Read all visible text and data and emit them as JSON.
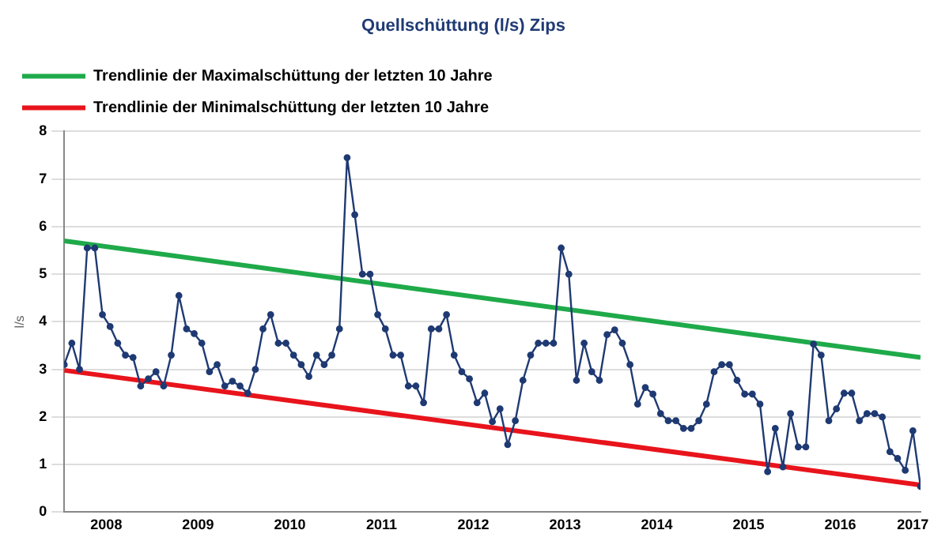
{
  "chart_data": {
    "type": "line",
    "title": "Quellschüttung (l/s) Zips",
    "ylabel": "l/s",
    "xlim": [
      "2008-01",
      "2017-05"
    ],
    "xticks": [
      {
        "value": "2008-06-16",
        "label": "2008"
      },
      {
        "value": "2009-06-16",
        "label": "2009"
      },
      {
        "value": "2010-06-16",
        "label": "2010"
      },
      {
        "value": "2011-06-16",
        "label": "2011"
      },
      {
        "value": "2012-06-16",
        "label": "2012"
      },
      {
        "value": "2013-06-16",
        "label": "2013"
      },
      {
        "value": "2014-06-16",
        "label": "2014"
      },
      {
        "value": "2015-06-16",
        "label": "2015"
      },
      {
        "value": "2016-06-16",
        "label": "2016"
      },
      {
        "value": "2017-04",
        "label": "2017"
      }
    ],
    "ylim": [
      0,
      8
    ],
    "yticks": [
      0,
      1,
      2,
      3,
      4,
      5,
      6,
      7,
      8
    ],
    "grid": "y",
    "legend": "top left",
    "series": [
      {
        "color": "#1f3a73",
        "marker": "circle",
        "x": [
          "2008-01",
          "2008-02",
          "2008-03",
          "2008-04",
          "2008-05",
          "2008-06",
          "2008-07",
          "2008-08",
          "2008-09",
          "2008-10",
          "2008-11",
          "2008-12",
          "2009-01",
          "2009-02",
          "2009-03",
          "2009-04",
          "2009-05",
          "2009-06",
          "2009-07",
          "2009-08",
          "2009-09",
          "2009-10",
          "2009-11",
          "2009-12",
          "2010-01",
          "2010-02",
          "2010-03",
          "2010-04",
          "2010-05",
          "2010-06",
          "2010-07",
          "2010-08",
          "2010-09",
          "2010-10",
          "2010-11",
          "2010-12",
          "2011-01",
          "2011-02",
          "2011-03",
          "2011-04",
          "2011-05",
          "2011-06",
          "2011-07",
          "2011-08",
          "2011-09",
          "2011-10",
          "2011-11",
          "2011-12",
          "2012-01",
          "2012-02",
          "2012-03",
          "2012-04",
          "2012-05",
          "2012-06",
          "2012-07",
          "2012-08",
          "2012-09",
          "2012-10",
          "2012-11",
          "2012-12",
          "2013-01",
          "2013-02",
          "2013-03",
          "2013-04",
          "2013-05",
          "2013-06",
          "2013-07",
          "2013-08",
          "2013-09",
          "2013-10",
          "2013-11",
          "2013-12",
          "2014-01",
          "2014-02",
          "2014-03",
          "2014-04",
          "2014-05",
          "2014-06",
          "2014-07",
          "2014-08",
          "2014-09",
          "2014-10",
          "2014-11",
          "2014-12",
          "2015-01",
          "2015-02",
          "2015-03",
          "2015-04",
          "2015-05",
          "2015-06",
          "2015-07",
          "2015-08",
          "2015-09",
          "2015-10",
          "2015-11",
          "2015-12",
          "2016-01",
          "2016-02",
          "2016-03",
          "2016-04",
          "2016-05",
          "2016-06",
          "2016-07",
          "2016-08",
          "2016-09",
          "2016-10",
          "2016-11",
          "2016-12",
          "2017-01",
          "2017-02",
          "2017-03",
          "2017-04",
          "2017-05"
        ],
        "values": [
          3.1,
          3.55,
          3.0,
          5.55,
          5.55,
          4.15,
          3.9,
          3.55,
          3.3,
          3.25,
          2.65,
          2.8,
          2.95,
          2.65,
          3.3,
          4.55,
          3.85,
          3.75,
          3.55,
          2.95,
          3.1,
          2.65,
          2.75,
          2.65,
          2.5,
          3.0,
          3.85,
          4.15,
          3.55,
          3.55,
          3.3,
          3.1,
          2.85,
          3.3,
          3.1,
          3.3,
          3.85,
          7.45,
          6.25,
          5.0,
          5.0,
          4.15,
          3.85,
          3.3,
          3.3,
          2.65,
          2.65,
          2.3,
          3.85,
          3.85,
          4.15,
          3.3,
          2.95,
          2.8,
          2.3,
          2.5,
          1.9,
          2.17,
          1.42,
          1.92,
          2.77,
          3.3,
          3.55,
          3.55,
          3.55,
          5.55,
          5.0,
          2.77,
          3.55,
          2.95,
          2.77,
          3.73,
          3.83,
          3.55,
          3.1,
          2.27,
          2.62,
          2.48,
          2.07,
          1.92,
          1.92,
          1.76,
          1.76,
          1.92,
          2.27,
          2.95,
          3.1,
          3.1,
          2.77,
          2.48,
          2.48,
          2.27,
          0.85,
          1.76,
          0.95,
          2.07,
          1.37,
          1.37,
          3.53,
          3.3,
          1.92,
          2.17,
          2.5,
          2.5,
          1.92,
          2.07,
          2.07,
          2.0,
          1.27,
          1.13,
          0.88,
          1.71,
          0.54
        ]
      },
      {
        "name": "Trendlinie der Maximalschüttung der letzten 10 Jahre",
        "color": "#1faa4a",
        "x": [
          "2008-01",
          "2017-05"
        ],
        "values": [
          5.7,
          3.25
        ]
      },
      {
        "name": "Trendlinie der Minimalschüttung der letzten 10 Jahre",
        "color": "#e8141c",
        "x": [
          "2008-01",
          "2017-05"
        ],
        "values": [
          2.98,
          0.57
        ]
      }
    ]
  }
}
